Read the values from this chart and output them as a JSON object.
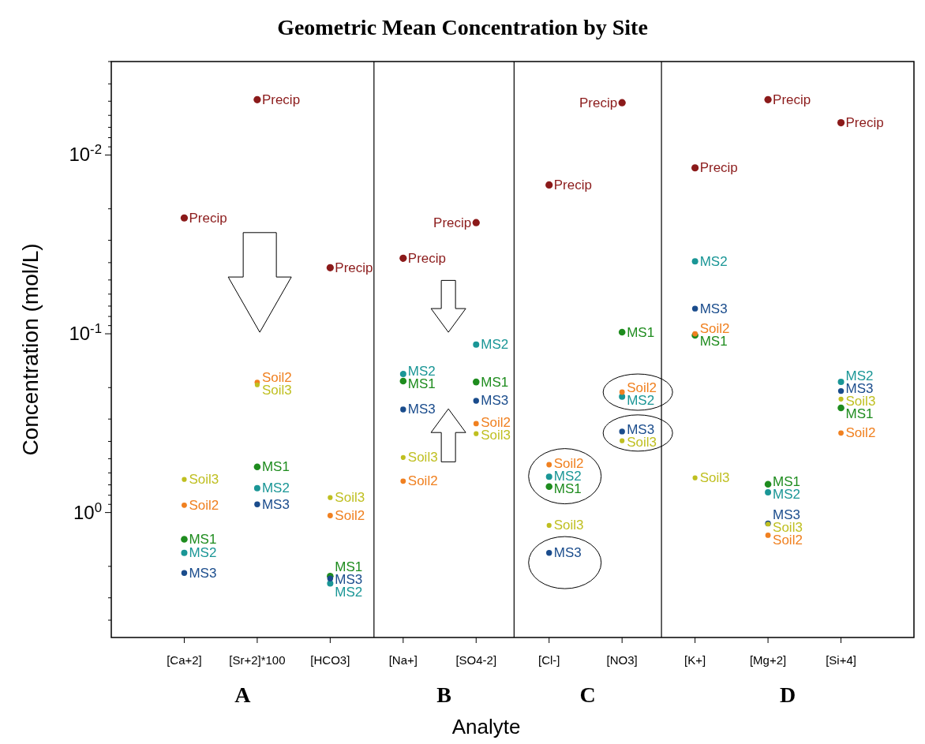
{
  "chart_data": {
    "type": "scatter",
    "title": "Geometric Mean Concentration by Site",
    "xlabel": "Analyte",
    "ylabel": "Concentration (mol/L)",
    "categories": [
      "[Ca+2]",
      "[Sr+2]*100",
      "[HCO3]",
      "[Na+]",
      "[SO4-2]",
      "[Cl-]",
      "[NO3]",
      "[K+]",
      "[Mg+2]",
      "[Si+4]"
    ],
    "log": "y",
    "ylim": [
      5,
      0.003
    ],
    "yticks": [
      {
        "value": 0.003,
        "label": null
      },
      {
        "value": 0.004,
        "label": null
      },
      {
        "value": 0.005,
        "label": null
      },
      {
        "value": 0.006,
        "label": null
      },
      {
        "value": 0.007,
        "label": null
      },
      {
        "value": 0.008,
        "label": null
      },
      {
        "value": 0.009,
        "label": null
      },
      {
        "value": 0.01,
        "label": "10$^{-2}$"
      },
      {
        "value": 0.02,
        "label": null
      },
      {
        "value": 0.03,
        "label": null
      },
      {
        "value": 0.04,
        "label": null
      },
      {
        "value": 0.05,
        "label": null
      },
      {
        "value": 0.06,
        "label": null
      },
      {
        "value": 0.07,
        "label": null
      },
      {
        "value": 0.08,
        "label": null
      },
      {
        "value": 0.09,
        "label": null
      },
      {
        "value": 0.1,
        "label": "10$^{-1}$"
      },
      {
        "value": 0.2,
        "label": null
      },
      {
        "value": 0.3,
        "label": null
      },
      {
        "value": 0.4,
        "label": null
      },
      {
        "value": 0.5,
        "label": null
      },
      {
        "value": 0.6,
        "label": null
      },
      {
        "value": 0.7,
        "label": null
      },
      {
        "value": 0.8,
        "label": null
      },
      {
        "value": 0.9,
        "label": null
      },
      {
        "value": 1,
        "label": "10$^{0}$"
      },
      {
        "value": 2,
        "label": null
      },
      {
        "value": 3,
        "label": null
      },
      {
        "value": 4,
        "label": null
      }
    ],
    "grid": false,
    "legend": false,
    "marker": "circle",
    "annotations": [
      "A",
      "B",
      "C",
      "D"
    ],
    "series": [
      {
        "name": "Precip",
        "color": "#8b1a1a",
        "values": [
          0.0225,
          0.0049,
          0.0427,
          0.0378,
          0.0239,
          0.0147,
          0.0051,
          0.0118,
          0.0049,
          0.0066
        ]
      },
      {
        "name": "MS1",
        "color": "#1e8c1e",
        "values": [
          1.41,
          0.555,
          2.27,
          0.184,
          0.186,
          0.716,
          0.098,
          0.102,
          0.694,
          0.26
        ]
      },
      {
        "name": "MS2",
        "color": "#1a9696",
        "values": [
          1.68,
          0.73,
          2.49,
          0.168,
          0.115,
          0.63,
          0.225,
          0.0393,
          0.77,
          0.186
        ]
      },
      {
        "name": "MS3",
        "color": "#1a4c8c",
        "values": [
          2.18,
          0.9,
          2.34,
          0.265,
          0.237,
          1.68,
          0.352,
          0.0723,
          1.15,
          0.209
        ]
      },
      {
        "name": "Soil2",
        "color": "#f08020",
        "values": [
          0.91,
          0.187,
          1.04,
          0.667,
          0.318,
          0.54,
          0.212,
          0.1,
          1.34,
          0.359
        ]
      },
      {
        "name": "Soil3",
        "color": "#bfbf20",
        "values": [
          0.653,
          0.193,
          0.825,
          0.492,
          0.362,
          1.18,
          0.397,
          0.64,
          1.16,
          0.232
        ]
      }
    ]
  }
}
